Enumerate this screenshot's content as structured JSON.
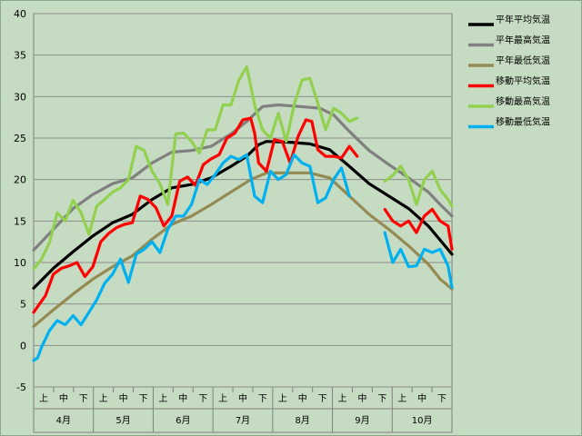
{
  "chart_data": {
    "type": "line",
    "ylim": [
      -5,
      40
    ],
    "yticks": [
      -5,
      0,
      5,
      10,
      15,
      20,
      25,
      30,
      35,
      40
    ],
    "months": [
      "4月",
      "5月",
      "6月",
      "7月",
      "8月",
      "9月",
      "10月"
    ],
    "dekads": [
      "上",
      "中",
      "下"
    ],
    "legend_position": "right",
    "grid": true,
    "x_unit": "day index from start of April (0-212)",
    "series": [
      {
        "name": "平年平均気温",
        "color": "#000000",
        "width": 3.2,
        "points": [
          [
            0,
            6.9
          ],
          [
            10,
            9.3
          ],
          [
            20,
            11.3
          ],
          [
            30,
            13.2
          ],
          [
            40,
            14.8
          ],
          [
            50,
            15.8
          ],
          [
            60,
            17.6
          ],
          [
            70,
            19.0
          ],
          [
            80,
            19.4
          ],
          [
            90,
            20.2
          ],
          [
            100,
            21.6
          ],
          [
            108,
            22.8
          ],
          [
            114,
            24.2
          ],
          [
            118,
            24.6
          ],
          [
            130,
            24.5
          ],
          [
            140,
            24.3
          ],
          [
            150,
            23.6
          ],
          [
            160,
            21.6
          ],
          [
            170,
            19.5
          ],
          [
            180,
            18.0
          ],
          [
            190,
            16.5
          ],
          [
            200,
            14.4
          ],
          [
            205,
            13.0
          ],
          [
            212,
            11.0
          ]
        ]
      },
      {
        "name": "平年最高気温",
        "color": "#808080",
        "width": 3.2,
        "points": [
          [
            0,
            11.5
          ],
          [
            10,
            14.0
          ],
          [
            20,
            16.5
          ],
          [
            30,
            18.2
          ],
          [
            40,
            19.5
          ],
          [
            50,
            20.2
          ],
          [
            60,
            22.0
          ],
          [
            70,
            23.3
          ],
          [
            80,
            23.5
          ],
          [
            90,
            24.0
          ],
          [
            100,
            25.5
          ],
          [
            108,
            27.0
          ],
          [
            116,
            28.8
          ],
          [
            124,
            29.0
          ],
          [
            135,
            28.8
          ],
          [
            145,
            28.6
          ],
          [
            152,
            27.8
          ],
          [
            160,
            25.8
          ],
          [
            170,
            23.5
          ],
          [
            180,
            21.8
          ],
          [
            190,
            20.2
          ],
          [
            200,
            18.5
          ],
          [
            206,
            17.0
          ],
          [
            212,
            15.6
          ]
        ]
      },
      {
        "name": "平年最低気温",
        "color": "#948a54",
        "width": 3.2,
        "points": [
          [
            0,
            2.3
          ],
          [
            10,
            4.3
          ],
          [
            20,
            6.2
          ],
          [
            30,
            8.0
          ],
          [
            40,
            9.5
          ],
          [
            50,
            10.8
          ],
          [
            60,
            12.8
          ],
          [
            70,
            14.6
          ],
          [
            80,
            15.6
          ],
          [
            90,
            17.0
          ],
          [
            100,
            18.5
          ],
          [
            110,
            20.0
          ],
          [
            118,
            20.8
          ],
          [
            130,
            20.8
          ],
          [
            140,
            20.8
          ],
          [
            150,
            20.2
          ],
          [
            160,
            18.0
          ],
          [
            170,
            15.8
          ],
          [
            180,
            14.0
          ],
          [
            190,
            12.0
          ],
          [
            200,
            9.8
          ],
          [
            206,
            8.0
          ],
          [
            212,
            6.8
          ]
        ]
      },
      {
        "name": "移動平均気温",
        "color": "#ff0000",
        "width": 3.2,
        "segments": [
          [
            [
              0,
              4.0
            ],
            [
              6,
              6.0
            ],
            [
              10,
              8.6
            ],
            [
              14,
              9.3
            ],
            [
              18,
              9.6
            ],
            [
              22,
              10.0
            ],
            [
              26,
              8.3
            ],
            [
              30,
              9.5
            ],
            [
              34,
              12.5
            ],
            [
              38,
              13.5
            ],
            [
              42,
              14.2
            ],
            [
              46,
              14.6
            ],
            [
              50,
              14.8
            ],
            [
              54,
              18.0
            ],
            [
              58,
              17.6
            ],
            [
              62,
              16.6
            ],
            [
              66,
              14.4
            ],
            [
              70,
              15.6
            ],
            [
              74,
              19.8
            ],
            [
              78,
              20.3
            ],
            [
              82,
              19.3
            ],
            [
              86,
              21.8
            ],
            [
              90,
              22.5
            ],
            [
              94,
              23.0
            ],
            [
              98,
              25.0
            ],
            [
              102,
              25.6
            ],
            [
              106,
              27.2
            ],
            [
              110,
              27.4
            ],
            [
              112,
              25.6
            ],
            [
              114,
              22.0
            ],
            [
              118,
              21.0
            ],
            [
              122,
              24.8
            ],
            [
              126,
              24.6
            ],
            [
              130,
              22.0
            ],
            [
              134,
              25.2
            ],
            [
              138,
              27.2
            ],
            [
              141,
              27.0
            ],
            [
              144,
              23.6
            ],
            [
              148,
              22.8
            ],
            [
              152,
              22.8
            ],
            [
              156,
              22.6
            ],
            [
              160,
              24.0
            ],
            [
              164,
              22.8
            ]
          ],
          [
            [
              178,
              16.4
            ],
            [
              182,
              15.0
            ],
            [
              186,
              14.4
            ],
            [
              190,
              15.0
            ],
            [
              194,
              13.6
            ],
            [
              198,
              15.6
            ],
            [
              202,
              16.4
            ],
            [
              206,
              15.0
            ],
            [
              210,
              14.4
            ],
            [
              212,
              11.6
            ]
          ]
        ]
      },
      {
        "name": "移動最高気温",
        "color": "#92d050",
        "width": 3.2,
        "segments": [
          [
            [
              0,
              9.2
            ],
            [
              4,
              10.4
            ],
            [
              8,
              12.4
            ],
            [
              12,
              16.0
            ],
            [
              16,
              15.0
            ],
            [
              20,
              17.5
            ],
            [
              24,
              16.0
            ],
            [
              28,
              13.4
            ],
            [
              32,
              16.8
            ],
            [
              36,
              17.6
            ],
            [
              40,
              18.5
            ],
            [
              44,
              19.0
            ],
            [
              48,
              20.0
            ],
            [
              52,
              24.0
            ],
            [
              56,
              23.5
            ],
            [
              60,
              21.0
            ],
            [
              64,
              19.5
            ],
            [
              68,
              17.0
            ],
            [
              72,
              25.5
            ],
            [
              76,
              25.6
            ],
            [
              80,
              24.6
            ],
            [
              84,
              23.2
            ],
            [
              88,
              26.0
            ],
            [
              92,
              26.0
            ],
            [
              96,
              29.0
            ],
            [
              100,
              29.0
            ],
            [
              104,
              32.0
            ],
            [
              108,
              33.6
            ],
            [
              112,
              29.0
            ],
            [
              116,
              26.0
            ],
            [
              120,
              25.0
            ],
            [
              124,
              28.0
            ],
            [
              128,
              24.6
            ],
            [
              132,
              29.0
            ],
            [
              136,
              32.0
            ],
            [
              140,
              32.2
            ],
            [
              144,
              29.2
            ],
            [
              148,
              26.0
            ],
            [
              152,
              28.6
            ],
            [
              156,
              28.0
            ],
            [
              160,
              27.0
            ],
            [
              164,
              27.4
            ]
          ],
          [
            [
              178,
              19.8
            ],
            [
              182,
              20.5
            ],
            [
              186,
              21.6
            ],
            [
              190,
              20.0
            ],
            [
              194,
              17.0
            ],
            [
              198,
              20.0
            ],
            [
              202,
              21.0
            ],
            [
              206,
              18.8
            ],
            [
              210,
              17.6
            ],
            [
              212,
              16.8
            ]
          ]
        ]
      },
      {
        "name": "移動最低気温",
        "color": "#00b0f0",
        "width": 3.2,
        "segments": [
          [
            [
              0,
              -1.8
            ],
            [
              2,
              -1.5
            ],
            [
              4,
              -0.2
            ],
            [
              8,
              1.8
            ],
            [
              12,
              3.0
            ],
            [
              16,
              2.5
            ],
            [
              20,
              3.6
            ],
            [
              24,
              2.5
            ],
            [
              28,
              4.0
            ],
            [
              32,
              5.5
            ],
            [
              36,
              7.5
            ],
            [
              40,
              8.6
            ],
            [
              44,
              10.4
            ],
            [
              48,
              7.6
            ],
            [
              52,
              11.0
            ],
            [
              56,
              11.6
            ],
            [
              60,
              12.5
            ],
            [
              64,
              11.2
            ],
            [
              68,
              14.0
            ],
            [
              72,
              15.6
            ],
            [
              76,
              15.6
            ],
            [
              80,
              17.0
            ],
            [
              84,
              20.0
            ],
            [
              88,
              19.4
            ],
            [
              92,
              20.6
            ],
            [
              96,
              22.0
            ],
            [
              100,
              22.8
            ],
            [
              104,
              22.4
            ],
            [
              108,
              23.0
            ],
            [
              112,
              18.0
            ],
            [
              116,
              17.2
            ],
            [
              120,
              21.0
            ],
            [
              124,
              20.0
            ],
            [
              128,
              20.6
            ],
            [
              132,
              23.0
            ],
            [
              136,
              22.0
            ],
            [
              140,
              21.6
            ],
            [
              144,
              17.2
            ],
            [
              148,
              17.8
            ],
            [
              152,
              20.0
            ],
            [
              156,
              21.4
            ],
            [
              160,
              18.0
            ]
          ],
          [
            [
              178,
              13.6
            ],
            [
              182,
              10.0
            ],
            [
              186,
              11.6
            ],
            [
              190,
              9.5
            ],
            [
              194,
              9.6
            ],
            [
              198,
              11.6
            ],
            [
              202,
              11.2
            ],
            [
              206,
              11.6
            ],
            [
              210,
              9.6
            ],
            [
              212,
              7.0
            ]
          ]
        ]
      }
    ]
  }
}
